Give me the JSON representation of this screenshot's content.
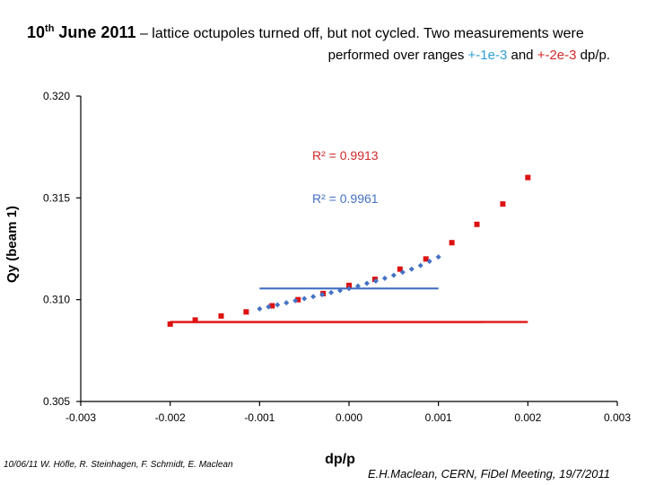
{
  "header": {
    "date_prefix": "10",
    "date_suffix": "th",
    "date_rest": " June 2011",
    "line1_rest": " – lattice octupoles turned off, but not cycled. Two measurements were",
    "line2_a": "performed over ranges ",
    "range1": "+-1e-3",
    "line2_b": " and ",
    "range2": "+-2e-3",
    "line2_c": " dp/p."
  },
  "chart_data": {
    "type": "scatter",
    "title": "",
    "xlabel": "dp/p",
    "ylabel": "Qy (beam 1)",
    "xlim": [
      -0.003,
      0.003
    ],
    "ylim": [
      0.305,
      0.32
    ],
    "x_ticks": [
      "-0.003",
      "-0.002",
      "-0.001",
      "0.000",
      "0.001",
      "0.002",
      "0.003"
    ],
    "y_ticks": [
      "0.305",
      "0.310",
      "0.315",
      "0.320"
    ],
    "annotations": [
      {
        "text": "R² = 0.9913",
        "color": "#d12a2a",
        "series": "+-2e-3"
      },
      {
        "text": "R² = 0.9961",
        "color": "#4472c4",
        "series": "+-1e-3"
      }
    ],
    "series": [
      {
        "name": "+-2e-3",
        "color": "#dd1111",
        "marker": "square",
        "x": [
          -0.002,
          -0.00172,
          -0.00143,
          -0.00115,
          -0.00086,
          -0.00057,
          -0.00029,
          0.0,
          0.00029,
          0.00057,
          0.00086,
          0.00115,
          0.00143,
          0.00172,
          0.002
        ],
        "y": [
          0.3088,
          0.309,
          0.3092,
          0.3094,
          0.3097,
          0.31,
          0.3103,
          0.3107,
          0.311,
          0.3115,
          0.312,
          0.3128,
          0.3137,
          0.3147,
          0.316
        ],
        "fit": [
          0.3089,
          0.000367,
          0.75
        ]
      },
      {
        "name": "+-1e-3",
        "color": "#4472c4",
        "marker": "diamond",
        "x": [
          -0.001,
          -0.0009,
          -0.0008,
          -0.0007,
          -0.0006,
          -0.0005,
          -0.0004,
          -0.0003,
          -0.0002,
          -0.0001,
          0.0,
          0.0001,
          0.0002,
          0.0003,
          0.0004,
          0.0005,
          0.0006,
          0.0007,
          0.0008,
          0.0009,
          0.001
        ],
        "y": [
          0.30955,
          0.30965,
          0.30975,
          0.30985,
          0.30995,
          0.31005,
          0.31015,
          0.31025,
          0.31035,
          0.31045,
          0.31055,
          0.31067,
          0.3108,
          0.31092,
          0.31105,
          0.3112,
          0.31135,
          0.3115,
          0.31168,
          0.31188,
          0.3121
        ],
        "fit": [
          0.31055,
          0.00055,
          0.55
        ]
      }
    ]
  },
  "footer": {
    "credits": "10/06/11  W. Höfle, R. Steinhagen, F. Schmidt, E. Maclean",
    "meeting": "E.H.Maclean, CERN, FiDel Meeting, 19/7/2011"
  }
}
